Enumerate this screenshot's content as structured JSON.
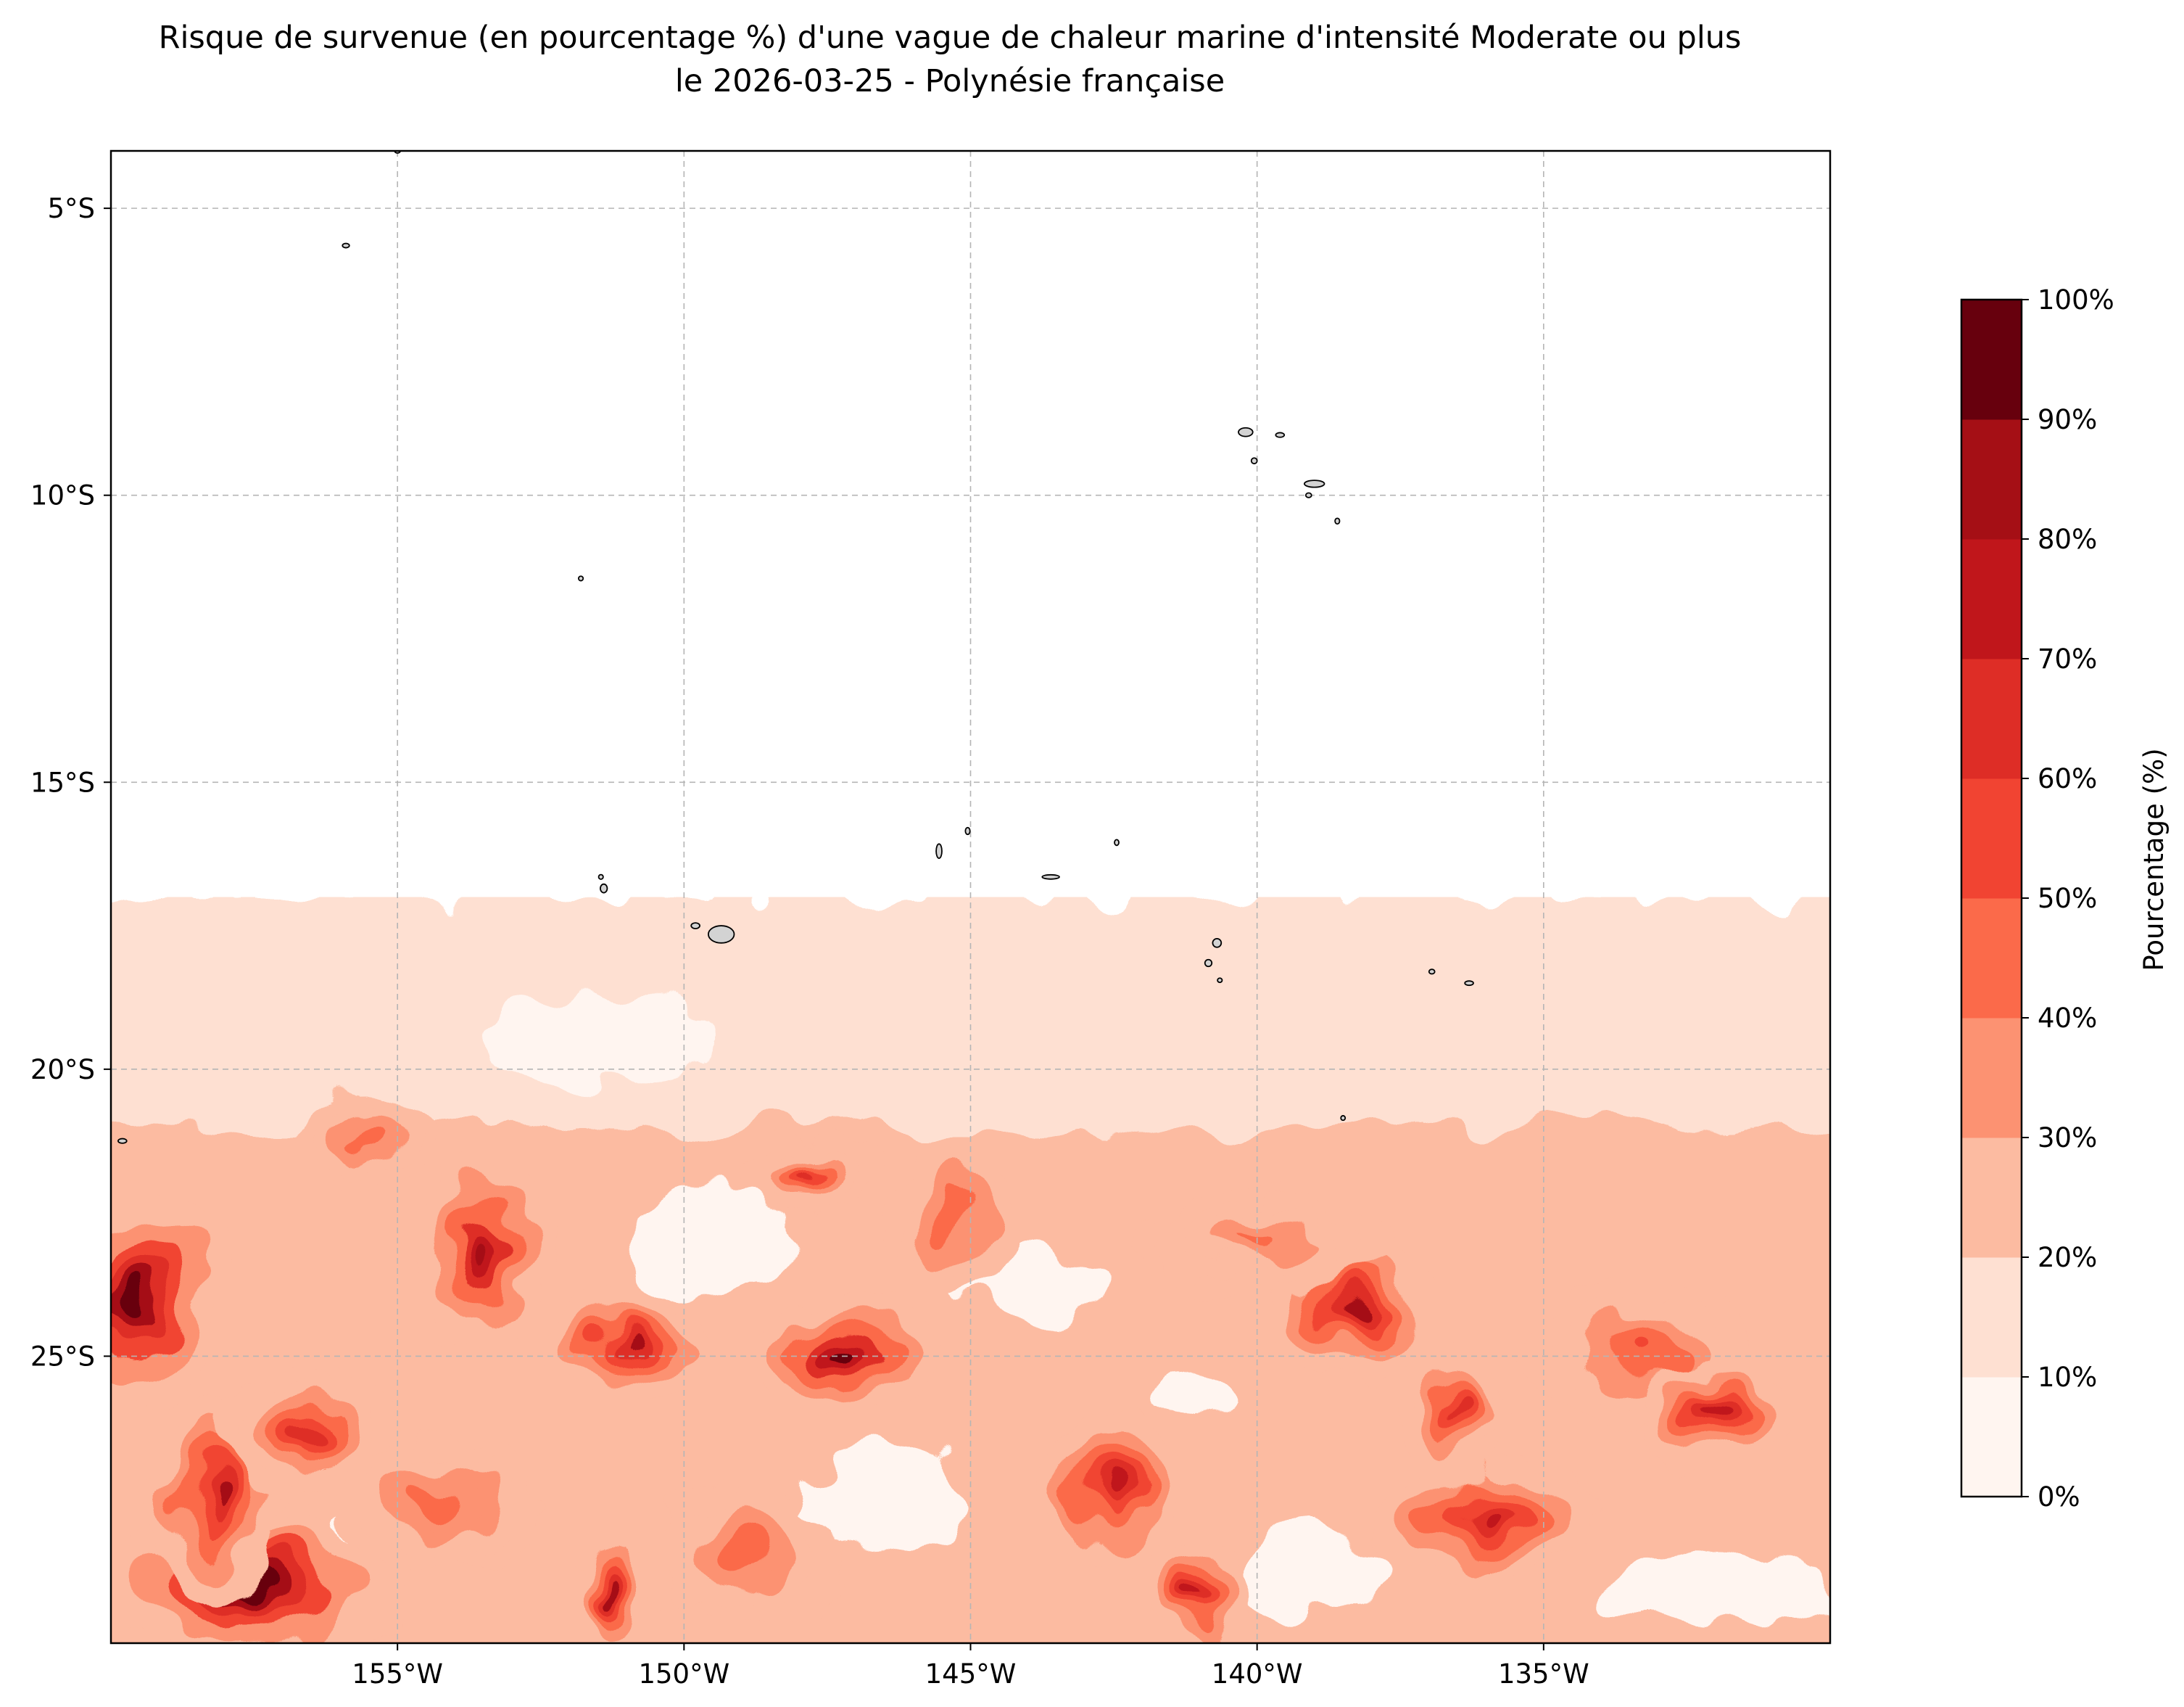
{
  "title": {
    "line1": "Risque de survenue (en pourcentage %) d'une vague de chaleur marine d'intensité Moderate ou plus",
    "line2": "le 2026-03-25 - Polynésie française"
  },
  "map": {
    "region": "Polynésie française",
    "lon_range": [
      -160,
      -130
    ],
    "lat_range": [
      -30,
      -4
    ],
    "x_ticks": [
      "155°W",
      "150°W",
      "145°W",
      "140°W",
      "135°W"
    ],
    "x_tick_values": [
      -155,
      -150,
      -145,
      -140,
      -135
    ],
    "y_ticks": [
      "5°S",
      "10°S",
      "15°S",
      "20°S",
      "25°S"
    ],
    "y_tick_values": [
      -5,
      -10,
      -15,
      -20,
      -25
    ],
    "grid": true,
    "land_color": "#d3d3d3",
    "islands": [
      {
        "lon": -155.0,
        "lat": -4.0,
        "w": 0.1,
        "h": 0.06
      },
      {
        "lon": -155.9,
        "lat": -5.65,
        "w": 0.12,
        "h": 0.05
      },
      {
        "lon": -151.8,
        "lat": -11.45,
        "w": 0.08,
        "h": 0.08
      },
      {
        "lon": -140.2,
        "lat": -8.9,
        "w": 0.25,
        "h": 0.15
      },
      {
        "lon": -139.6,
        "lat": -8.95,
        "w": 0.15,
        "h": 0.08
      },
      {
        "lon": -140.05,
        "lat": -9.4,
        "w": 0.1,
        "h": 0.1
      },
      {
        "lon": -139.0,
        "lat": -9.8,
        "w": 0.35,
        "h": 0.12
      },
      {
        "lon": -139.1,
        "lat": -10.0,
        "w": 0.1,
        "h": 0.08
      },
      {
        "lon": -138.6,
        "lat": -10.45,
        "w": 0.08,
        "h": 0.1
      },
      {
        "lon": -151.45,
        "lat": -16.65,
        "w": 0.08,
        "h": 0.08
      },
      {
        "lon": -151.4,
        "lat": -16.85,
        "w": 0.12,
        "h": 0.15
      },
      {
        "lon": -149.8,
        "lat": -17.5,
        "w": 0.15,
        "h": 0.1
      },
      {
        "lon": -149.35,
        "lat": -17.65,
        "w": 0.45,
        "h": 0.3
      },
      {
        "lon": -145.55,
        "lat": -16.2,
        "w": 0.1,
        "h": 0.25
      },
      {
        "lon": -145.05,
        "lat": -15.85,
        "w": 0.08,
        "h": 0.12
      },
      {
        "lon": -143.6,
        "lat": -16.65,
        "w": 0.3,
        "h": 0.06
      },
      {
        "lon": -142.45,
        "lat": -16.05,
        "w": 0.06,
        "h": 0.1
      },
      {
        "lon": -140.7,
        "lat": -17.8,
        "w": 0.15,
        "h": 0.15
      },
      {
        "lon": -140.85,
        "lat": -18.15,
        "w": 0.12,
        "h": 0.12
      },
      {
        "lon": -140.65,
        "lat": -18.45,
        "w": 0.08,
        "h": 0.06
      },
      {
        "lon": -136.95,
        "lat": -18.3,
        "w": 0.1,
        "h": 0.08
      },
      {
        "lon": -136.3,
        "lat": -18.5,
        "w": 0.15,
        "h": 0.06
      },
      {
        "lon": -138.5,
        "lat": -20.85,
        "w": 0.06,
        "h": 0.08
      },
      {
        "lon": -159.8,
        "lat": -21.25,
        "w": 0.15,
        "h": 0.08
      }
    ]
  },
  "colorbar": {
    "label": "Pourcentage (%)",
    "ticks": [
      "0%",
      "10%",
      "20%",
      "30%",
      "40%",
      "50%",
      "60%",
      "70%",
      "80%",
      "90%",
      "100%"
    ],
    "levels": [
      0,
      10,
      20,
      30,
      40,
      50,
      60,
      70,
      80,
      90,
      100
    ],
    "colors": [
      "#fff5f0",
      "#fee0d2",
      "#fcbba1",
      "#fc9272",
      "#fb6a4a",
      "#f14432",
      "#de2d26",
      "#c0161b",
      "#a50f15",
      "#67000d"
    ]
  },
  "heat_field": {
    "description_units": "percent",
    "hotspots": [
      {
        "lon": -159.5,
        "lat": -24.0,
        "value": 95,
        "rlon": 1.2,
        "rlat": 1.6
      },
      {
        "lon": -157.5,
        "lat": -29.0,
        "value": 98,
        "rlon": 2.2,
        "rlat": 1.0
      },
      {
        "lon": -158.2,
        "lat": -27.5,
        "value": 80,
        "rlon": 0.8,
        "rlat": 1.5
      },
      {
        "lon": -156.5,
        "lat": -26.3,
        "value": 65,
        "rlon": 1.2,
        "rlat": 1.0
      },
      {
        "lon": -153.5,
        "lat": -23.2,
        "value": 88,
        "rlon": 0.9,
        "rlat": 1.3
      },
      {
        "lon": -151.0,
        "lat": -24.8,
        "value": 80,
        "rlon": 1.1,
        "rlat": 0.8
      },
      {
        "lon": -147.2,
        "lat": -25.0,
        "value": 92,
        "rlon": 1.3,
        "rlat": 0.9
      },
      {
        "lon": -145.3,
        "lat": -22.5,
        "value": 45,
        "rlon": 0.8,
        "rlat": 1.2
      },
      {
        "lon": -147.8,
        "lat": -21.8,
        "value": 62,
        "rlon": 0.9,
        "rlat": 0.5
      },
      {
        "lon": -142.5,
        "lat": -27.3,
        "value": 72,
        "rlon": 0.9,
        "rlat": 1.2
      },
      {
        "lon": -141.0,
        "lat": -29.3,
        "value": 75,
        "rlon": 0.7,
        "rlat": 0.8
      },
      {
        "lon": -138.2,
        "lat": -24.2,
        "value": 82,
        "rlon": 1.2,
        "rlat": 1.0
      },
      {
        "lon": -136.0,
        "lat": -27.8,
        "value": 75,
        "rlon": 1.6,
        "rlat": 0.9
      },
      {
        "lon": -136.6,
        "lat": -26.0,
        "value": 62,
        "rlon": 0.7,
        "rlat": 1.0
      },
      {
        "lon": -133.3,
        "lat": -25.0,
        "value": 55,
        "rlon": 1.6,
        "rlat": 1.0
      },
      {
        "lon": -132.0,
        "lat": -26.0,
        "value": 70,
        "rlon": 1.0,
        "rlat": 0.7
      },
      {
        "lon": -140.0,
        "lat": -23.0,
        "value": 42,
        "rlon": 1.8,
        "rlat": 0.7
      },
      {
        "lon": -155.5,
        "lat": -21.2,
        "value": 45,
        "rlon": 1.0,
        "rlat": 0.6
      },
      {
        "lon": -151.3,
        "lat": -29.2,
        "value": 80,
        "rlon": 0.5,
        "rlat": 0.8
      },
      {
        "lon": -149.0,
        "lat": -28.5,
        "value": 45,
        "rlon": 1.4,
        "rlat": 0.9
      },
      {
        "lon": -154.2,
        "lat": -27.6,
        "value": 48,
        "rlon": 1.4,
        "rlat": 0.9
      }
    ],
    "background": [
      {
        "lat_min": -30,
        "lat_max": -17,
        "value": 12
      },
      {
        "lat_min": -30,
        "lat_max": -21,
        "value": 22
      }
    ],
    "cool_spots": [
      {
        "lon": -154.8,
        "lat": -27.8,
        "rlon": 1.2,
        "rlat": 0.6
      },
      {
        "lon": -146.5,
        "lat": -27.5,
        "rlon": 1.5,
        "rlat": 1.0
      },
      {
        "lon": -149.5,
        "lat": -23.0,
        "rlon": 1.5,
        "rlat": 0.9
      },
      {
        "lon": -144.0,
        "lat": -23.8,
        "rlon": 1.3,
        "rlat": 0.6
      },
      {
        "lon": -139.0,
        "lat": -28.8,
        "rlon": 1.4,
        "rlat": 0.8
      },
      {
        "lon": -141.0,
        "lat": -25.7,
        "rlon": 0.8,
        "rlat": 0.5
      },
      {
        "lon": -151.5,
        "lat": -19.5,
        "rlon": 2.0,
        "rlat": 0.8
      },
      {
        "lon": -132.0,
        "lat": -29.0,
        "rlon": 2.0,
        "rlat": 0.6
      }
    ]
  }
}
